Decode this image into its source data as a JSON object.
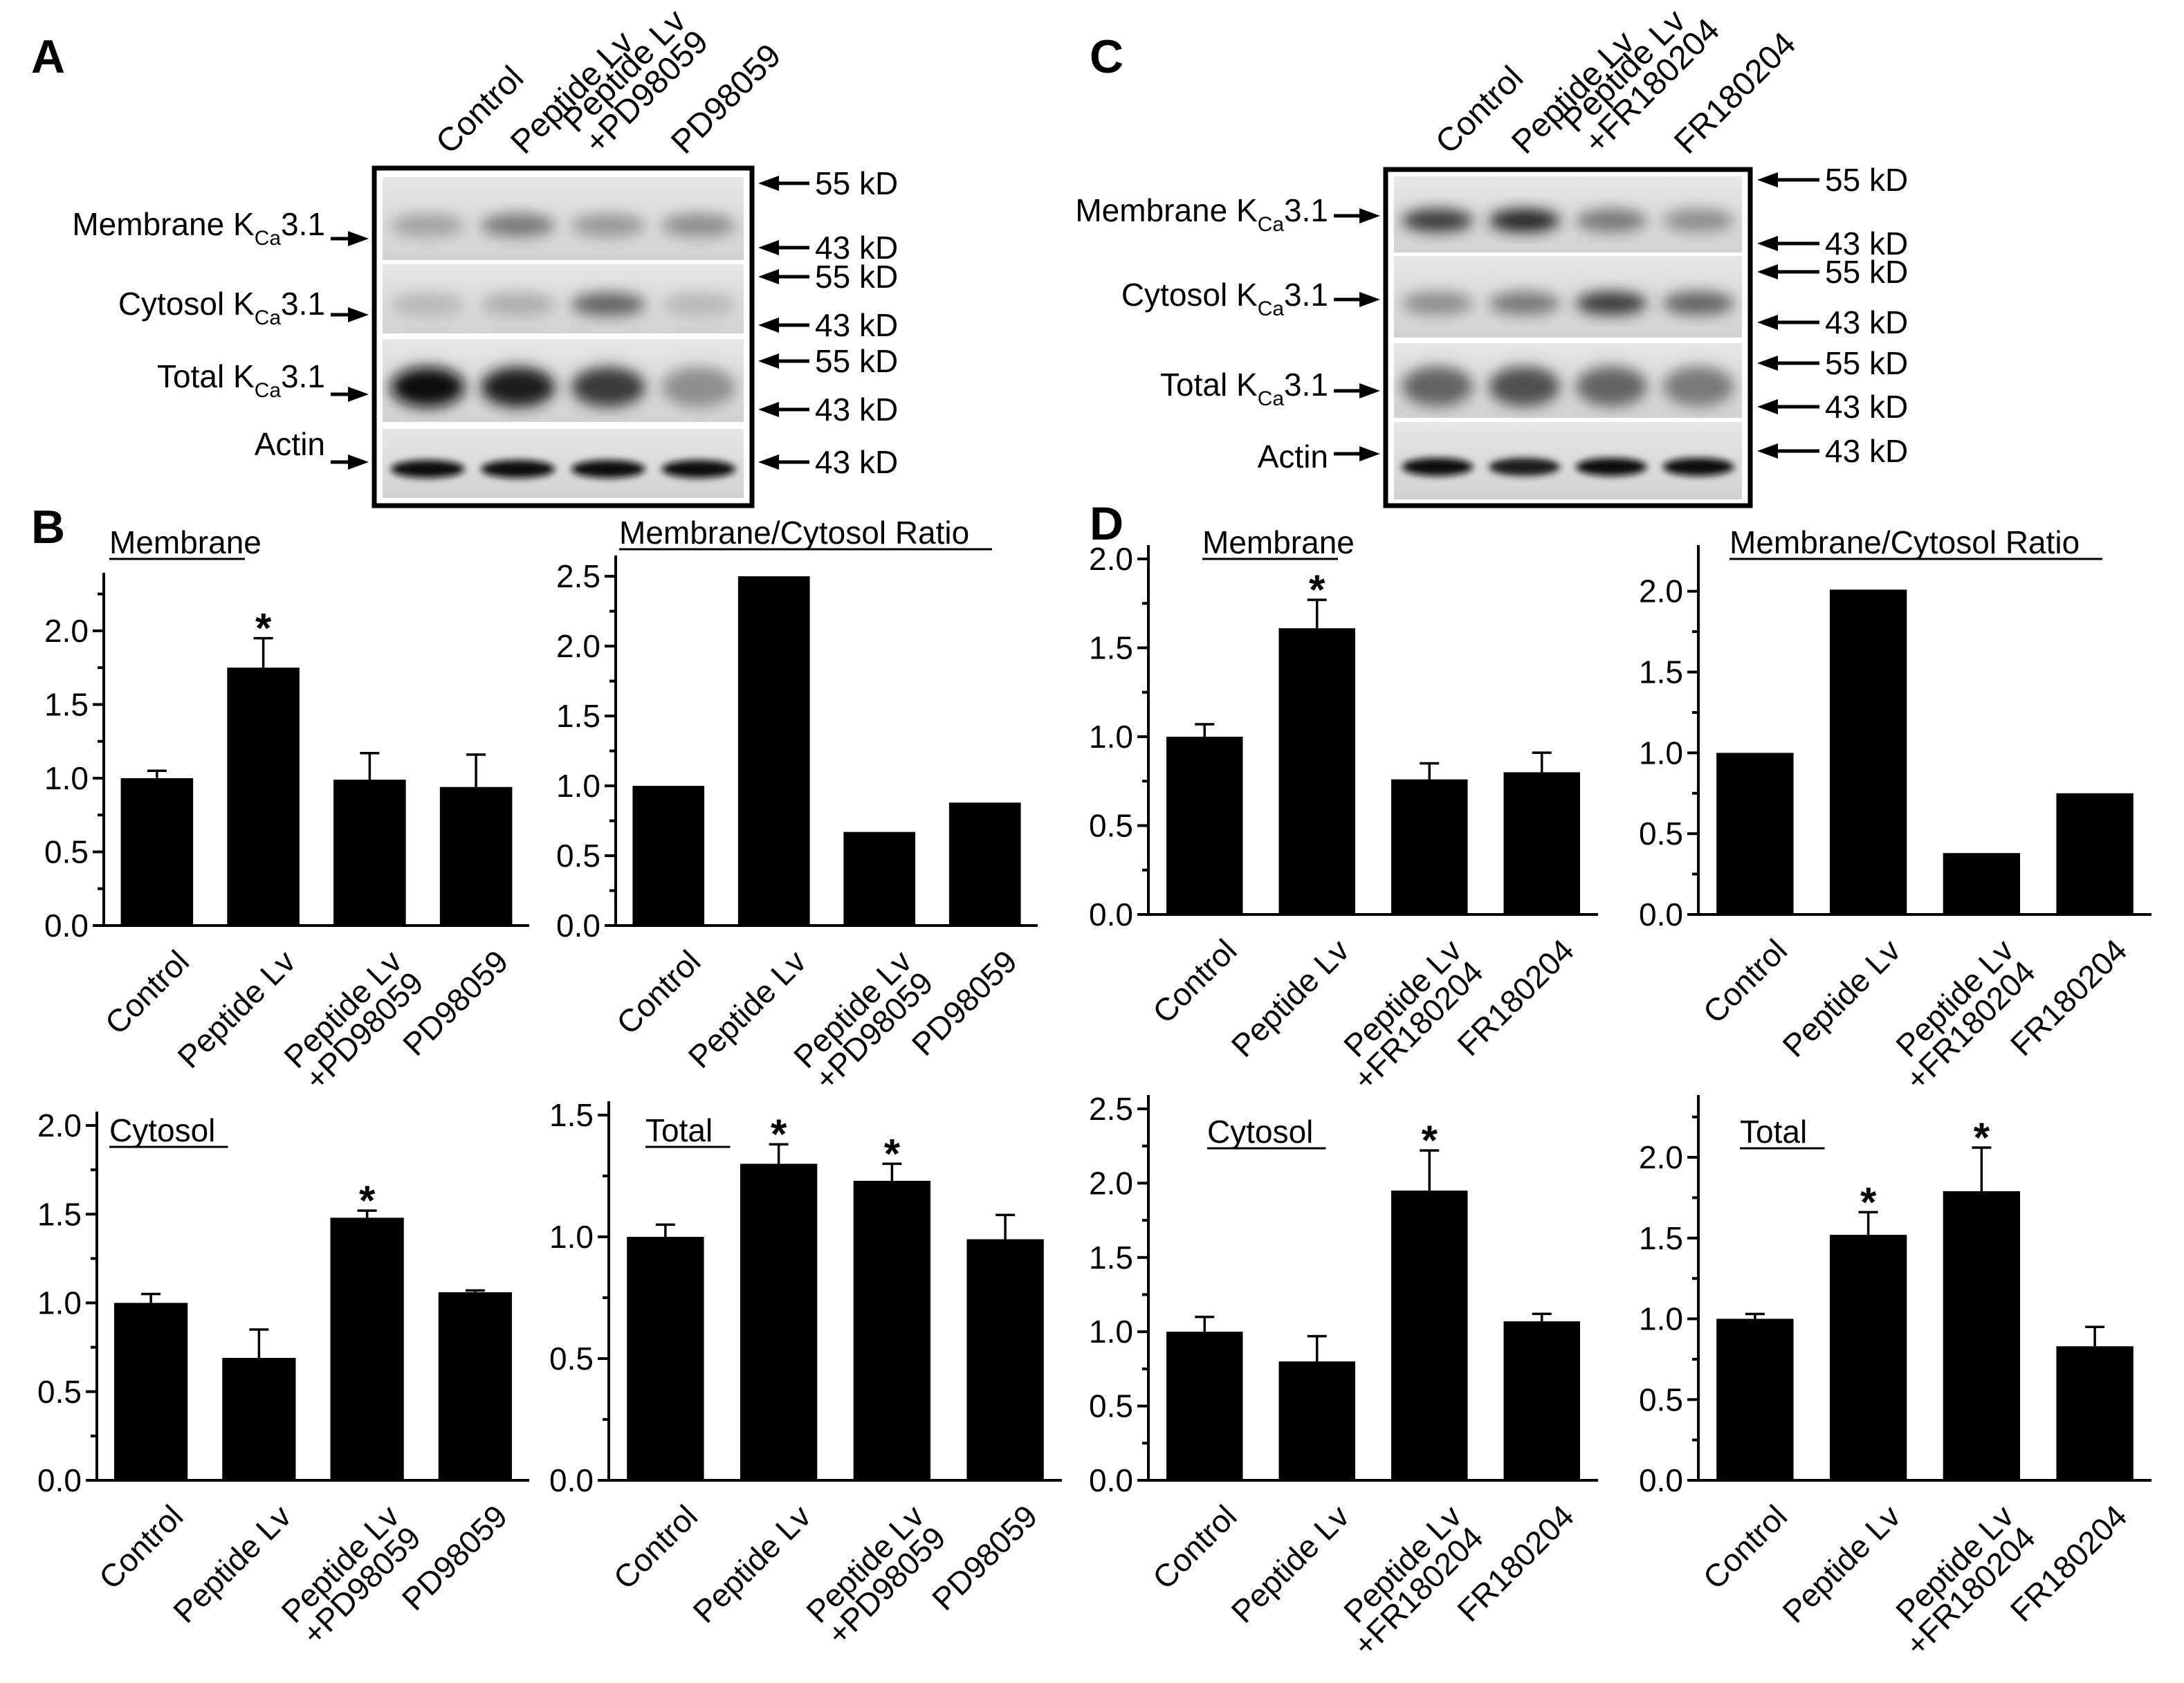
{
  "panel_letters": [
    "A",
    "B",
    "C",
    "D"
  ],
  "blots": [
    {
      "panel": "A",
      "lanes": [
        "Control",
        "Peptide Lv",
        "Peptide Lv\n+PD98059",
        "PD98059"
      ],
      "rows": [
        {
          "label": "Membrane K",
          "sub": "Ca",
          "suffix": "3.1",
          "markers": [
            "55 kD",
            "43 kD"
          ]
        },
        {
          "label": "Cytosol K",
          "sub": "Ca",
          "suffix": "3.1",
          "markers": [
            "55 kD",
            "43 kD"
          ]
        },
        {
          "label": "Total K",
          "sub": "Ca",
          "suffix": "3.1",
          "markers": [
            "55 kD",
            "43 kD"
          ]
        },
        {
          "label": "Actin",
          "sub": "",
          "suffix": "",
          "markers": [
            "43 kD"
          ]
        }
      ]
    },
    {
      "panel": "C",
      "lanes": [
        "Control",
        "Peptide Lv",
        "Peptide Lv\n+FR180204",
        "FR180204"
      ],
      "rows": [
        {
          "label": "Membrane K",
          "sub": "Ca",
          "suffix": "3.1",
          "markers": [
            "55 kD",
            "43 kD"
          ]
        },
        {
          "label": "Cytosol K",
          "sub": "Ca",
          "suffix": "3.1",
          "markers": [
            "55 kD",
            "43 kD"
          ]
        },
        {
          "label": "Total K",
          "sub": "Ca",
          "suffix": "3.1",
          "markers": [
            "55 kD",
            "43 kD"
          ]
        },
        {
          "label": "Actin",
          "sub": "",
          "suffix": "",
          "markers": [
            "43 kD"
          ]
        }
      ]
    }
  ],
  "chart_data": [
    {
      "type": "bar",
      "panel": "B",
      "title": "Membrane",
      "categories": [
        "Control",
        "Peptide Lv",
        "Peptide Lv\n+PD98059",
        "PD98059"
      ],
      "values": [
        1.0,
        1.75,
        0.99,
        0.94
      ],
      "errors": [
        0.05,
        0.2,
        0.18,
        0.22
      ],
      "significant": [
        false,
        true,
        false,
        false
      ],
      "ylim": [
        0,
        2.3
      ],
      "yticks": [
        0.0,
        0.5,
        1.0,
        1.5,
        2.0
      ]
    },
    {
      "type": "bar",
      "panel": "B",
      "title": "Membrane/Cytosol Ratio",
      "categories": [
        "Control",
        "Peptide Lv",
        "Peptide Lv\n+PD98059",
        "PD98059"
      ],
      "values": [
        1.0,
        2.5,
        0.67,
        0.88
      ],
      "errors": [
        0,
        0,
        0,
        0
      ],
      "significant": [
        false,
        false,
        false,
        false
      ],
      "ylim": [
        0,
        2.55
      ],
      "yticks": [
        0.0,
        0.5,
        1.0,
        1.5,
        2.0,
        2.5
      ]
    },
    {
      "type": "bar",
      "panel": "B",
      "title": "Cytosol",
      "categories": [
        "Control",
        "Peptide Lv",
        "Peptide Lv\n+PD98059",
        "PD98059"
      ],
      "values": [
        1.0,
        0.69,
        1.48,
        1.06
      ],
      "errors": [
        0.05,
        0.16,
        0.04,
        0.01
      ],
      "significant": [
        false,
        false,
        true,
        false
      ],
      "ylim": [
        0,
        2.0
      ],
      "yticks": [
        0.0,
        0.5,
        1.0,
        1.5,
        2.0
      ]
    },
    {
      "type": "bar",
      "panel": "B",
      "title": "Total",
      "categories": [
        "Control",
        "Peptide Lv",
        "Peptide Lv\n+PD98059",
        "PD98059"
      ],
      "values": [
        1.0,
        1.3,
        1.23,
        0.99
      ],
      "errors": [
        0.05,
        0.08,
        0.07,
        0.1
      ],
      "significant": [
        false,
        true,
        true,
        false
      ],
      "ylim": [
        0,
        1.5
      ],
      "yticks": [
        0.0,
        0.5,
        1.0,
        1.5
      ]
    },
    {
      "type": "bar",
      "panel": "D",
      "title": "Membrane",
      "categories": [
        "Control",
        "Peptide Lv",
        "Peptide Lv\n+FR180204",
        "FR180204"
      ],
      "values": [
        1.0,
        1.61,
        0.76,
        0.8
      ],
      "errors": [
        0.07,
        0.16,
        0.09,
        0.11
      ],
      "significant": [
        false,
        true,
        false,
        false
      ],
      "ylim": [
        0,
        2.0
      ],
      "yticks": [
        0.0,
        0.5,
        1.0,
        1.5,
        2.0
      ]
    },
    {
      "type": "bar",
      "panel": "D",
      "title": "Membrane/Cytosol Ratio",
      "categories": [
        "Control",
        "Peptide Lv",
        "Peptide Lv\n+FR180204",
        "FR180204"
      ],
      "values": [
        1.0,
        2.01,
        0.38,
        0.75
      ],
      "errors": [
        0,
        0,
        0,
        0
      ],
      "significant": [
        false,
        false,
        false,
        false
      ],
      "ylim": [
        0,
        2.2
      ],
      "yticks": [
        0.0,
        0.5,
        1.0,
        1.5,
        2.0
      ]
    },
    {
      "type": "bar",
      "panel": "D",
      "title": "Cytosol",
      "categories": [
        "Control",
        "Peptide Lv",
        "Peptide Lv\n+FR180204",
        "FR180204"
      ],
      "values": [
        1.0,
        0.8,
        1.95,
        1.07
      ],
      "errors": [
        0.1,
        0.17,
        0.27,
        0.05
      ],
      "significant": [
        false,
        false,
        true,
        false
      ],
      "ylim": [
        0,
        2.5
      ],
      "yticks": [
        0.0,
        0.5,
        1.0,
        1.5,
        2.0,
        2.5
      ]
    },
    {
      "type": "bar",
      "panel": "D",
      "title": "Total",
      "categories": [
        "Control",
        "Peptide Lv",
        "Peptide Lv\n+FR180204",
        "FR180204"
      ],
      "values": [
        1.0,
        1.52,
        1.79,
        0.83
      ],
      "errors": [
        0.03,
        0.14,
        0.27,
        0.12
      ],
      "significant": [
        false,
        true,
        true,
        false
      ],
      "ylim": [
        0,
        2.3
      ],
      "yticks": [
        0.0,
        0.5,
        1.0,
        1.5,
        2.0
      ]
    }
  ]
}
